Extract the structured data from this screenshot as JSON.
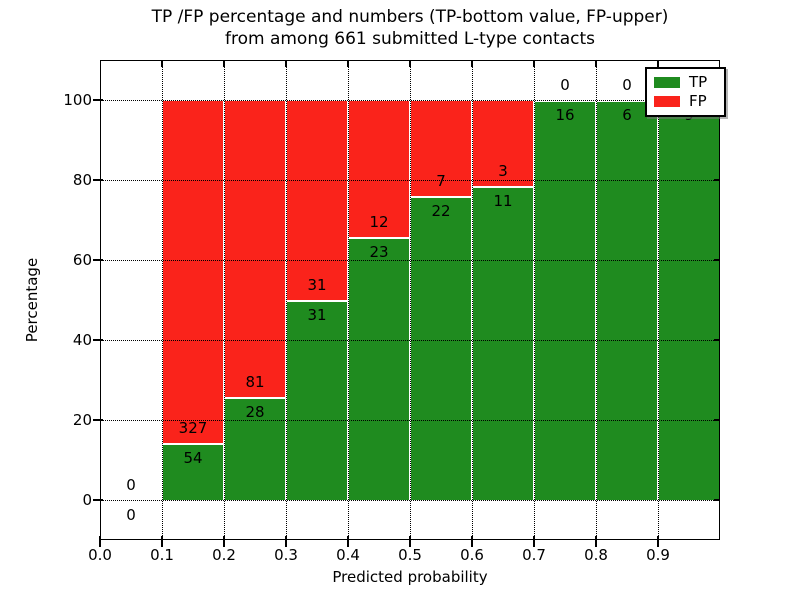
{
  "title": {
    "line1": "TP /FP percentage and numbers (TP-bottom value, FP-upper)",
    "line2": "from among 661 submitted L-type contacts"
  },
  "y_axis": {
    "label": "Percentage",
    "ticks": [
      "0",
      "20",
      "40",
      "60",
      "80",
      "100"
    ]
  },
  "x_axis": {
    "label": "Predicted probability",
    "ticks": [
      "0.0",
      "0.1",
      "0.2",
      "0.3",
      "0.4",
      "0.5",
      "0.6",
      "0.7",
      "0.8",
      "0.9"
    ]
  },
  "legend": {
    "items": [
      {
        "label": "TP",
        "color": "#1f8b1f"
      },
      {
        "label": "FP",
        "color": "#fa231b"
      }
    ]
  },
  "colors": {
    "tp_green": "#1f8b1f",
    "fp_red": "#fa231b",
    "grid": "#000000",
    "background": "#ffffff"
  },
  "chart_data": {
    "type": "bar",
    "stacked": true,
    "title": "TP /FP percentage and numbers (TP-bottom value, FP-upper)\nfrom among 661 submitted L-type contacts",
    "xlabel": "Predicted probability",
    "ylabel": "Percentage",
    "xlim": [
      0.0,
      1.0
    ],
    "ylim": [
      -10,
      110
    ],
    "grid": "dotted",
    "legend_position": "upper right",
    "total_contacts": 661,
    "bin_edges": [
      0.0,
      0.1,
      0.2,
      0.3,
      0.4,
      0.5,
      0.6,
      0.7,
      0.8,
      0.9,
      1.0
    ],
    "categories": [
      "0.0-0.1",
      "0.1-0.2",
      "0.2-0.3",
      "0.3-0.4",
      "0.4-0.5",
      "0.5-0.6",
      "0.6-0.7",
      "0.7-0.8",
      "0.8-0.9",
      "0.9-1.0"
    ],
    "series": [
      {
        "name": "TP",
        "color": "#1f8b1f",
        "counts": [
          0,
          54,
          28,
          31,
          23,
          22,
          11,
          16,
          6,
          9
        ],
        "pct": [
          0,
          14.2,
          25.7,
          50.0,
          65.7,
          75.9,
          78.6,
          100,
          100,
          100
        ]
      },
      {
        "name": "FP",
        "color": "#fa231b",
        "counts": [
          0,
          327,
          81,
          31,
          12,
          7,
          3,
          0,
          0,
          0
        ],
        "pct": [
          0,
          85.8,
          74.3,
          50.0,
          34.3,
          24.1,
          21.4,
          0,
          0,
          0
        ]
      }
    ]
  }
}
